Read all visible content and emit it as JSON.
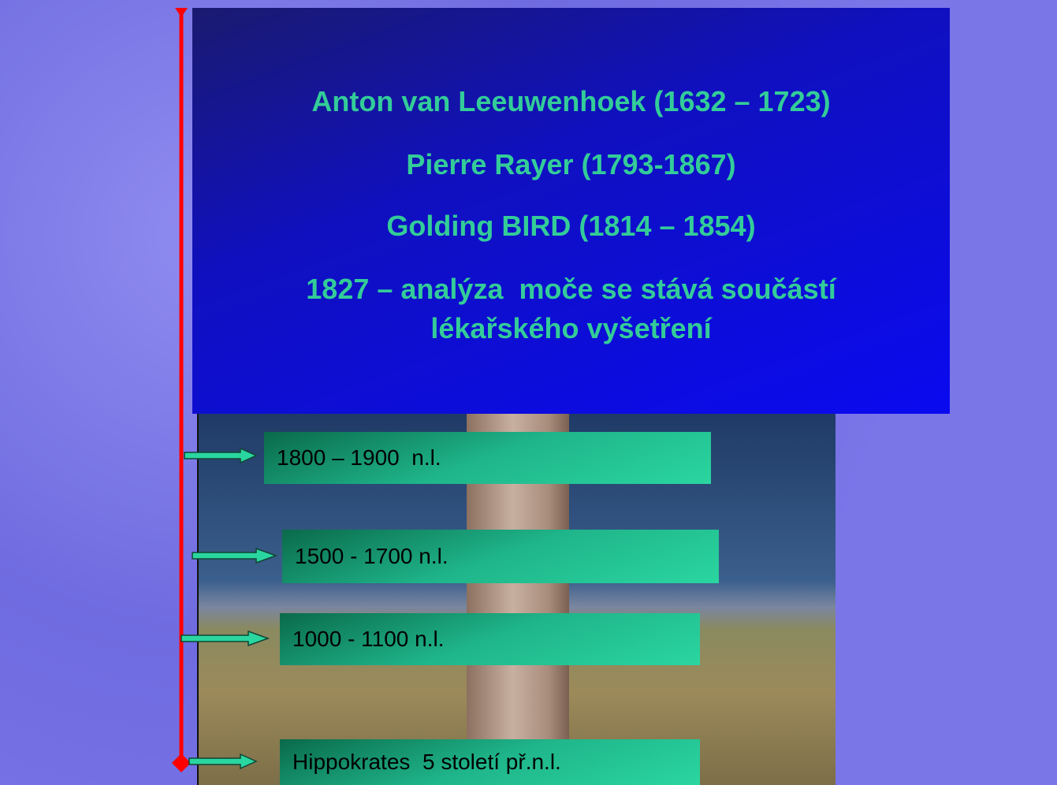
{
  "heading": {
    "lines": [
      "Anton van Leeuwenhoek (1632 – 1723)",
      "Pierre Rayer (1793-1867)",
      "Golding BIRD (1814 – 1854)",
      "1827 – analýza  moče se stává součástí",
      "lékařského vyšetření"
    ]
  },
  "timeline": {
    "items": [
      "1800 – 1900  n.l.",
      "1500 - 1700 n.l.",
      "1000 - 1100 n.l.",
      "Hippokrates  5 století př.n.l."
    ]
  }
}
